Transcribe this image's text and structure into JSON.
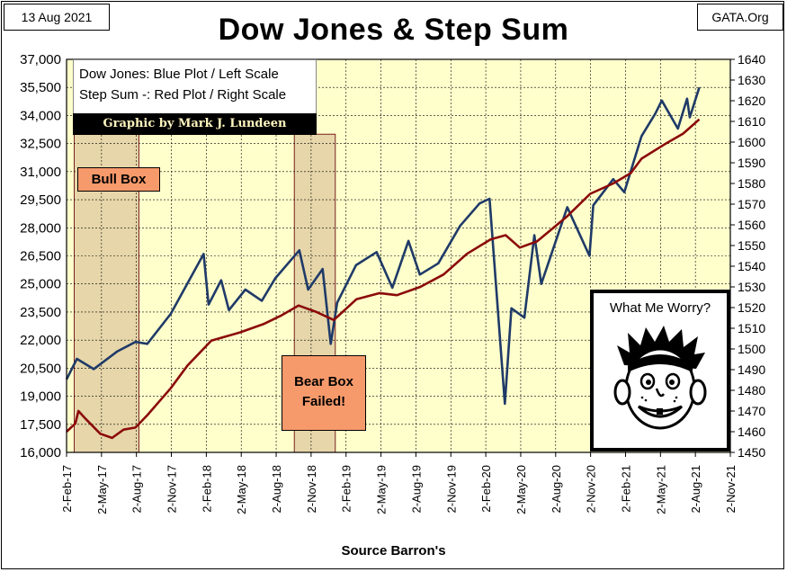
{
  "header": {
    "date": "13 Aug 2021",
    "source_tag": "GATA.Org",
    "title": "Dow Jones & Step Sum"
  },
  "legend": {
    "line1": "Dow Jones: Blue Plot / Left Scale",
    "line2": "Step Sum -: Red Plot / Right Scale",
    "credit": "Graphic by Mark J. Lundeen"
  },
  "annotations": {
    "bull_box": "Bull Box",
    "bear_box_line1": "Bear Box",
    "bear_box_line2": "Failed!",
    "worry_caption": "What Me Worry?"
  },
  "footer": "Source Barron's",
  "colors": {
    "plot_bg": "#ffffcc",
    "grid": "#000000",
    "dow": "#1f3a68",
    "step_sum": "#8b0a0a",
    "box_fill": "#d2b48c",
    "label_fill": "#f79a6b"
  },
  "chart_data": {
    "type": "line",
    "title": "Dow Jones & Step Sum",
    "xlabel": "Source Barron's",
    "x_ticks": [
      "2-Feb-17",
      "2-May-17",
      "2-Aug-17",
      "2-Nov-17",
      "2-Feb-18",
      "2-May-18",
      "2-Aug-18",
      "2-Nov-18",
      "2-Feb-19",
      "2-May-19",
      "2-Aug-19",
      "2-Nov-19",
      "2-Feb-20",
      "2-May-20",
      "2-Aug-20",
      "2-Nov-20",
      "2-Feb-21",
      "2-May-21",
      "2-Aug-21",
      "2-Nov-21"
    ],
    "xlim": [
      "2017-02-02",
      "2021-11-02"
    ],
    "y_left": {
      "label": "Dow Jones",
      "ylim": [
        16000,
        37000
      ],
      "ticks": [
        "16,000",
        "17,500",
        "19,000",
        "20,500",
        "22,000",
        "23,500",
        "25,000",
        "26,500",
        "28,000",
        "29,500",
        "31,000",
        "32,500",
        "34,000",
        "35,500",
        "37,000"
      ]
    },
    "y_right": {
      "label": "Step Sum",
      "ylim": [
        1450,
        1640
      ],
      "ticks": [
        "1450",
        "1460",
        "1470",
        "1480",
        "1490",
        "1500",
        "1510",
        "1520",
        "1530",
        "1540",
        "1550",
        "1560",
        "1570",
        "1580",
        "1590",
        "1600",
        "1610",
        "1620",
        "1630",
        "1640"
      ]
    },
    "grid": true,
    "legend_position": "top-left",
    "shaded_regions": [
      {
        "name": "Bull Box",
        "x_start": "2017-02-22",
        "x_end": "2017-08-10",
        "y_top": 33000
      },
      {
        "name": "Bear Box Failed!",
        "x_start": "2018-09-20",
        "x_end": "2019-01-05",
        "y_top": 33000
      }
    ],
    "series": [
      {
        "name": "Dow Jones",
        "axis": "left",
        "points": [
          [
            "2017-02-02",
            19900
          ],
          [
            "2017-03-01",
            21000
          ],
          [
            "2017-04-14",
            20450
          ],
          [
            "2017-06-15",
            21400
          ],
          [
            "2017-08-01",
            21900
          ],
          [
            "2017-09-01",
            21800
          ],
          [
            "2017-11-01",
            23400
          ],
          [
            "2018-01-26",
            26600
          ],
          [
            "2018-02-08",
            23900
          ],
          [
            "2018-03-13",
            25200
          ],
          [
            "2018-04-02",
            23600
          ],
          [
            "2018-05-15",
            24700
          ],
          [
            "2018-06-27",
            24100
          ],
          [
            "2018-08-01",
            25300
          ],
          [
            "2018-10-03",
            26800
          ],
          [
            "2018-10-26",
            24700
          ],
          [
            "2018-12-03",
            25800
          ],
          [
            "2018-12-24",
            21800
          ],
          [
            "2019-01-10",
            24000
          ],
          [
            "2019-02-28",
            26000
          ],
          [
            "2019-04-23",
            26700
          ],
          [
            "2019-06-03",
            24800
          ],
          [
            "2019-07-15",
            27300
          ],
          [
            "2019-08-14",
            25500
          ],
          [
            "2019-10-01",
            26100
          ],
          [
            "2019-11-27",
            28100
          ],
          [
            "2020-01-17",
            29300
          ],
          [
            "2020-02-12",
            29550
          ],
          [
            "2020-03-23",
            18600
          ],
          [
            "2020-04-09",
            23700
          ],
          [
            "2020-05-13",
            23200
          ],
          [
            "2020-06-08",
            27600
          ],
          [
            "2020-06-26",
            25000
          ],
          [
            "2020-09-02",
            29100
          ],
          [
            "2020-10-30",
            26500
          ],
          [
            "2020-11-09",
            29200
          ],
          [
            "2020-12-31",
            30600
          ],
          [
            "2021-01-29",
            29900
          ],
          [
            "2021-03-15",
            32900
          ],
          [
            "2021-04-20",
            34100
          ],
          [
            "2021-05-07",
            34800
          ],
          [
            "2021-06-18",
            33300
          ],
          [
            "2021-07-12",
            34900
          ],
          [
            "2021-07-19",
            33900
          ],
          [
            "2021-08-13",
            35500
          ]
        ]
      },
      {
        "name": "Step Sum",
        "axis": "right",
        "points": [
          [
            "2017-02-02",
            1460
          ],
          [
            "2017-02-25",
            1464
          ],
          [
            "2017-03-05",
            1470
          ],
          [
            "2017-03-25",
            1466
          ],
          [
            "2017-05-01",
            1459
          ],
          [
            "2017-06-01",
            1457
          ],
          [
            "2017-07-01",
            1461
          ],
          [
            "2017-08-01",
            1462
          ],
          [
            "2017-09-01",
            1468
          ],
          [
            "2017-11-01",
            1481
          ],
          [
            "2017-12-15",
            1492
          ],
          [
            "2018-02-15",
            1504
          ],
          [
            "2018-05-01",
            1508
          ],
          [
            "2018-07-01",
            1512
          ],
          [
            "2018-08-15",
            1516
          ],
          [
            "2018-10-01",
            1521
          ],
          [
            "2018-11-15",
            1518
          ],
          [
            "2019-01-01",
            1514
          ],
          [
            "2019-03-01",
            1524
          ],
          [
            "2019-05-01",
            1527
          ],
          [
            "2019-06-15",
            1526
          ],
          [
            "2019-08-15",
            1530
          ],
          [
            "2019-10-15",
            1536
          ],
          [
            "2019-12-15",
            1546
          ],
          [
            "2020-02-15",
            1553
          ],
          [
            "2020-03-25",
            1555
          ],
          [
            "2020-05-01",
            1549
          ],
          [
            "2020-06-15",
            1552
          ],
          [
            "2020-09-01",
            1564
          ],
          [
            "2020-11-01",
            1575
          ],
          [
            "2020-12-31",
            1580
          ],
          [
            "2021-02-15",
            1585
          ],
          [
            "2021-03-15",
            1592
          ],
          [
            "2021-05-15",
            1599
          ],
          [
            "2021-07-01",
            1604
          ],
          [
            "2021-08-13",
            1611
          ]
        ]
      }
    ]
  }
}
